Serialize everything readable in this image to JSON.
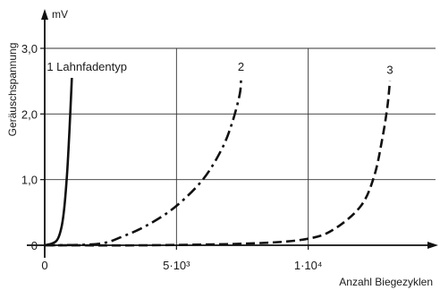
{
  "chart_data": {
    "type": "line",
    "y_unit": "mV",
    "ylabel": "Geräuschspannung",
    "xlabel": "Anzahl  Biegezyklen",
    "xlim": [
      0,
      15000
    ],
    "ylim": [
      0,
      3.0
    ],
    "grid": true,
    "x_ticks": [
      {
        "value": 0,
        "label": "0"
      },
      {
        "value": 5000,
        "label": "5·10³"
      },
      {
        "value": 10000,
        "label": "1·10⁴"
      }
    ],
    "y_ticks": [
      {
        "value": 0,
        "label": "0"
      },
      {
        "value": 1.0,
        "label": "1,0"
      },
      {
        "value": 2.0,
        "label": "2,0"
      },
      {
        "value": 3.0,
        "label": "3,0"
      }
    ],
    "series": [
      {
        "name": "1 Lahnfadentyp",
        "style": "solid",
        "points": [
          [
            0,
            0
          ],
          [
            300,
            0.03
          ],
          [
            500,
            0.1
          ],
          [
            650,
            0.3
          ],
          [
            750,
            0.6
          ],
          [
            850,
            1.1
          ],
          [
            920,
            1.6
          ],
          [
            980,
            2.1
          ],
          [
            1030,
            2.55
          ]
        ]
      },
      {
        "name": "2",
        "style": "dash-dot",
        "points": [
          [
            0,
            0
          ],
          [
            2000,
            0.02
          ],
          [
            3000,
            0.14
          ],
          [
            4000,
            0.33
          ],
          [
            5000,
            0.6
          ],
          [
            6000,
            1.0
          ],
          [
            6700,
            1.45
          ],
          [
            7100,
            1.85
          ],
          [
            7400,
            2.3
          ],
          [
            7450,
            2.55
          ]
        ]
      },
      {
        "name": "3",
        "style": "dashed",
        "points": [
          [
            0,
            0
          ],
          [
            4000,
            0.0
          ],
          [
            8000,
            0.03
          ],
          [
            10000,
            0.1
          ],
          [
            11000,
            0.25
          ],
          [
            12000,
            0.6
          ],
          [
            12500,
            1.05
          ],
          [
            12800,
            1.6
          ],
          [
            13000,
            2.1
          ],
          [
            13100,
            2.5
          ]
        ]
      }
    ]
  }
}
